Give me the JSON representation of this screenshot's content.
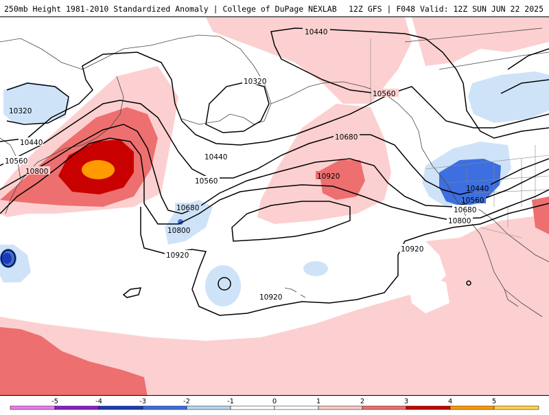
{
  "header": {
    "title_left": "250mb Height 1981-2010 Standardized Anomaly | College of DuPage NEXLAB",
    "title_right": "12Z GFS | F048 Valid: 12Z SUN JUN 22 2025"
  },
  "contour_labels": {
    "c1": "10440",
    "c2": "10320",
    "c3": "10560",
    "c4": "10320",
    "c5": "10440",
    "c6": "10560",
    "c7": "10800",
    "c8": "10680",
    "c9": "10440",
    "c10": "10560",
    "c11": "10680",
    "c12": "10800",
    "c13": "10920",
    "c14": "10920",
    "c15": "10440",
    "c16": "10560",
    "c17": "10680",
    "c18": "10800",
    "c19": "10920",
    "c20": "10920"
  },
  "colorbar": {
    "ticks": [
      "-5",
      "-4",
      "-3",
      "-2",
      "-1",
      "0",
      "1",
      "2",
      "3",
      "4",
      "5"
    ],
    "colors": [
      "#d63ad6",
      "#8b1fc9",
      "#1a3cb8",
      "#3b6fe0",
      "#b7d6f5",
      "#ffffff",
      "#ffffff",
      "#fcc8c8",
      "#ee6f6f",
      "#c80000",
      "#ff9a00"
    ],
    "palette": {
      "neg1": "#cfe3f8",
      "neg2": "#3d6fe0",
      "neg3": "#1a3cb8",
      "pos1": "#fcd0d0",
      "pos2": "#ee6f6f",
      "pos3": "#c80000",
      "pos4": "#ff9a00"
    }
  }
}
